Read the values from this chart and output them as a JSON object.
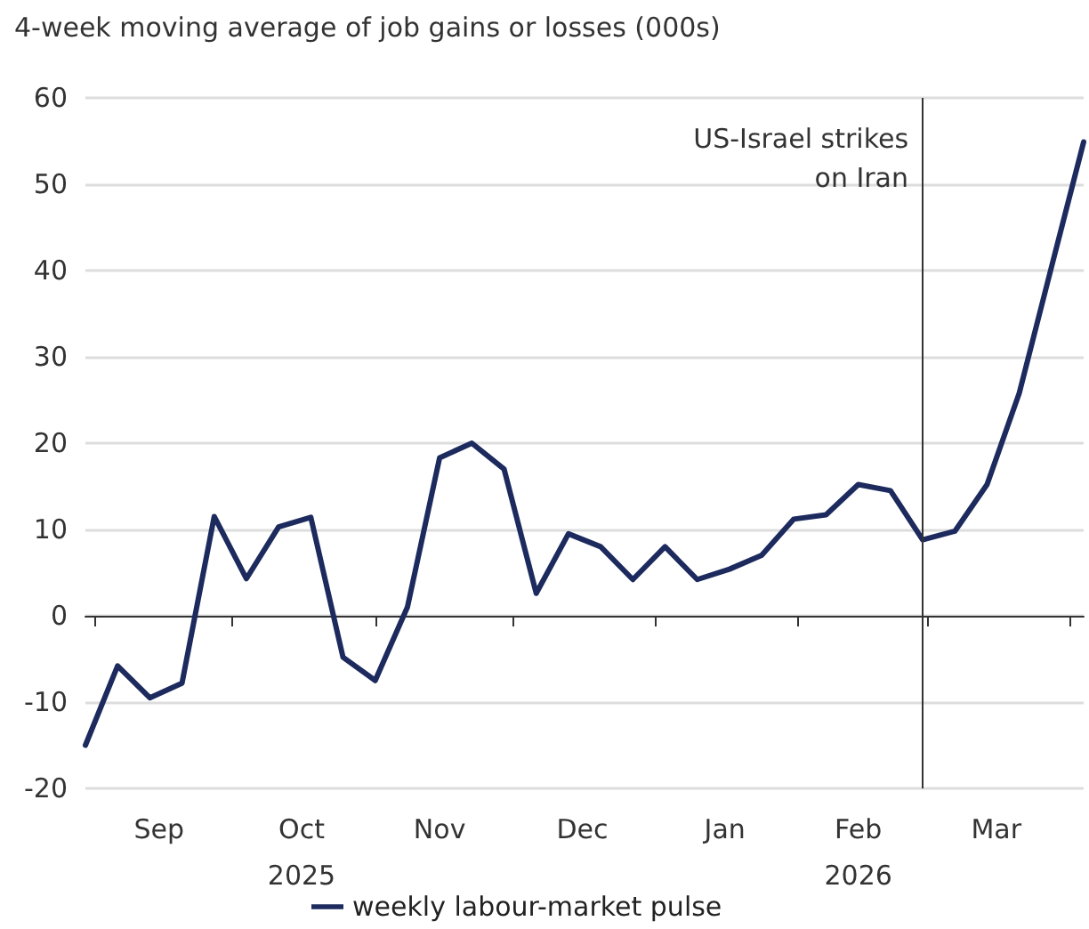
{
  "chart_data": {
    "type": "line",
    "ylabel": "4-week moving average of job gains or losses (000s)",
    "x": [
      "2025-08-30",
      "2025-09-06",
      "2025-09-13",
      "2025-09-20",
      "2025-09-27",
      "2025-10-04",
      "2025-10-11",
      "2025-10-18",
      "2025-10-25",
      "2025-11-01",
      "2025-11-08",
      "2025-11-15",
      "2025-11-22",
      "2025-11-29",
      "2025-12-06",
      "2025-12-13",
      "2025-12-20",
      "2025-12-27",
      "2026-01-03",
      "2026-01-10",
      "2026-01-17",
      "2026-01-24",
      "2026-01-31",
      "2026-02-07",
      "2026-02-14",
      "2026-02-21",
      "2026-02-28",
      "2026-03-07",
      "2026-03-14",
      "2026-03-21",
      "2026-03-28",
      "2026-04-04"
    ],
    "series": [
      {
        "name": "weekly labour-market pulse",
        "color": "#1c2a5e",
        "values": [
          -15,
          -5.8,
          -9.5,
          -7.8,
          11.5,
          4.3,
          10.3,
          11.4,
          -4.8,
          -7.5,
          1,
          18.3,
          20,
          17,
          2.6,
          9.5,
          8,
          4.2,
          8,
          4.2,
          5.4,
          7,
          11.2,
          11.7,
          15.2,
          14.5,
          8.8,
          9.8,
          15.2,
          25.8,
          40.4,
          54.9
        ]
      }
    ],
    "xlim": [
      "2025-08-30",
      "2026-04-04"
    ],
    "xticks": [
      {
        "value": "2025-09-01",
        "label": null
      },
      {
        "value": "2025-09-15",
        "label": "Sep"
      },
      {
        "value": "2025-10-01",
        "label": null
      },
      {
        "value": "2025-10-16",
        "label": "Oct\n2025"
      },
      {
        "value": "2025-11-01",
        "label": null
      },
      {
        "value": "2025-11-15",
        "label": "Nov"
      },
      {
        "value": "2025-12-01",
        "label": null
      },
      {
        "value": "2025-12-16",
        "label": "Dec"
      },
      {
        "value": "2026-01-01",
        "label": null
      },
      {
        "value": "2026-01-16",
        "label": "Jan"
      },
      {
        "value": "2026-02-01",
        "label": null
      },
      {
        "value": "2026-02-14",
        "label": "Feb\n2026"
      },
      {
        "value": "2026-03-01",
        "label": null
      },
      {
        "value": "2026-03-16",
        "label": "Mar"
      },
      {
        "value": "2026-04-01",
        "label": null
      }
    ],
    "ylim": [
      -20,
      60
    ],
    "yticks": [
      -20,
      -10,
      0,
      10,
      20,
      30,
      40,
      50,
      60
    ],
    "ref_lines": [
      {
        "axis": "x",
        "value": "2026-02-28",
        "label": "US-Israel strikes\non Iran",
        "color": "#333333"
      }
    ],
    "grid": "y",
    "legend": "bottom",
    "marker": "none",
    "line_style": "solid"
  }
}
